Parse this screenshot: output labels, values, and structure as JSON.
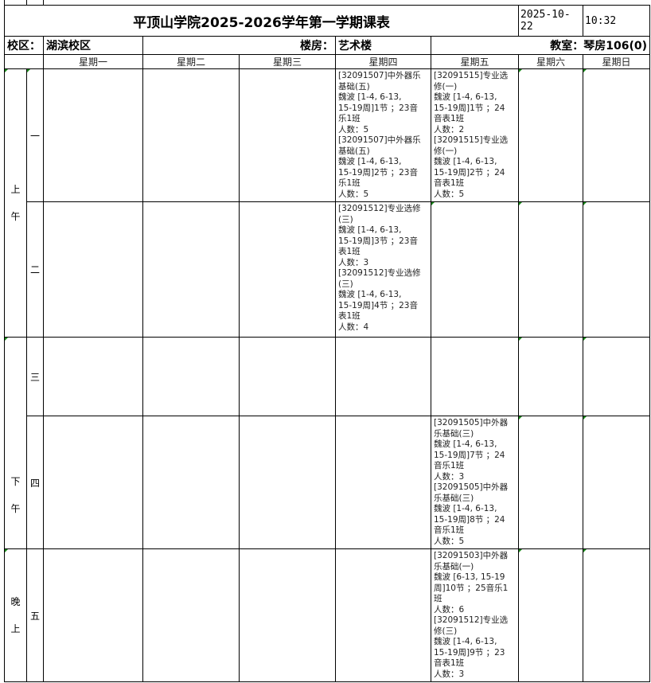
{
  "header": {
    "title": "平顶山学院2025-2026学年第一学期课表",
    "date": "2025-10-22",
    "time": "10:32"
  },
  "info": {
    "campus_label": "校区：",
    "campus": "湖滨校区",
    "building_label": "楼房：",
    "building": "艺术楼",
    "room": "教室：琴房106(0)"
  },
  "days": [
    "星期一",
    "星期二",
    "星期三",
    "星期四",
    "星期五",
    "星期六",
    "星期日"
  ],
  "sessions": {
    "morning": [
      "上",
      "午"
    ],
    "afternoon": [
      "下",
      "午"
    ],
    "evening": [
      "晚",
      "上"
    ]
  },
  "periods": [
    "一",
    "二",
    "三",
    "四",
    "五"
  ],
  "cells": {
    "p1_thu": "[32091507]中外器乐\n基础(五)\n魏波 [1-4, 6-13,\n15-19周]1节 ；23音\n乐1班\n人数：5\n[32091507]中外器乐\n基础(五)\n魏波 [1-4, 6-13,\n15-19周]2节 ；23音\n乐1班\n人数：5",
    "p1_fri": "[32091515]专业选\n修(一)\n魏波 [1-4, 6-13,\n15-19周]1节 ；24\n音表1班\n人数：2\n[32091515]专业选\n修(一)\n魏波 [1-4, 6-13,\n15-19周]2节 ；24\n音表1班\n人数：5",
    "p2_thu": "[32091512]专业选修\n(三)\n魏波 [1-4, 6-13,\n15-19周]3节 ；23音\n表1班\n人数：3\n[32091512]专业选修\n(三)\n魏波 [1-4, 6-13,\n15-19周]4节 ；23音\n表1班\n人数：4",
    "p4_fri": "[32091505]中外器\n乐基础(三)\n魏波 [1-4, 6-13,\n15-19周]7节 ；24\n音乐1班\n人数：3\n[32091505]中外器\n乐基础(三)\n魏波 [1-4, 6-13,\n15-19周]8节 ；24\n音乐1班\n人数：5",
    "p5_fri": "[32091503]中外器\n乐基础(一)\n魏波 [6-13, 15-19\n周]10节 ；25音乐1\n班\n人数：6\n[32091512]专业选\n修(三)\n魏波 [1-4, 6-13,\n15-19周]9节 ；23\n音表1班\n人数：3"
  }
}
